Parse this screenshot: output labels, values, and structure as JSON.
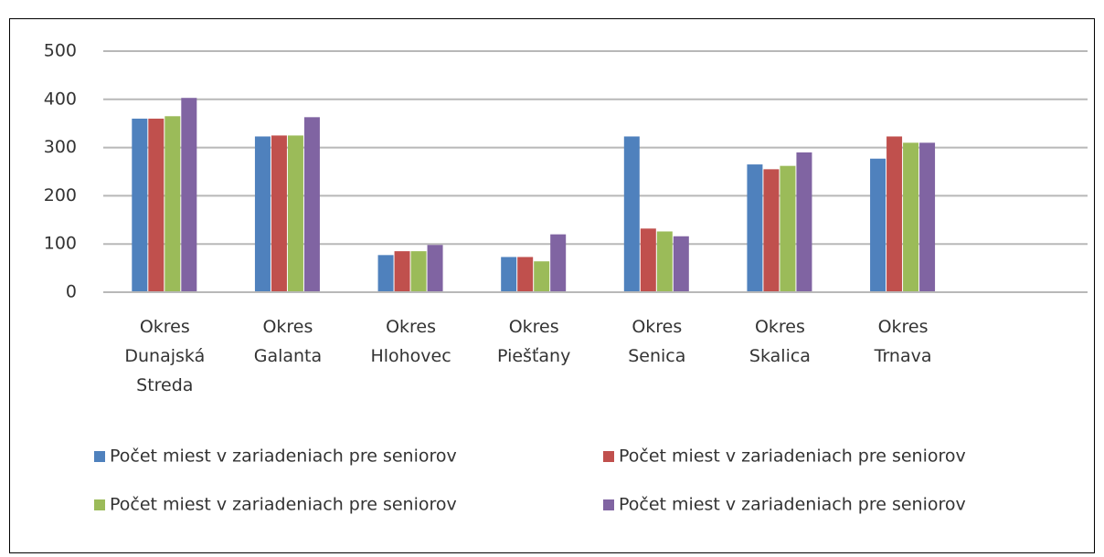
{
  "chart_data": {
    "type": "bar",
    "categories": [
      "Okres Dunajská Streda",
      "Okres Galanta",
      "Okres Hlohovec",
      "Okres Piešťany",
      "Okres Senica",
      "Okres Skalica",
      "Okres Trnava",
      null
    ],
    "series": [
      {
        "name": "Počet miest v zariadeniach pre seniorov",
        "color": "#4f81bd",
        "values": [
          360,
          323,
          77,
          73,
          323,
          265,
          277,
          null
        ]
      },
      {
        "name": "Počet miest v zariadeniach pre seniorov",
        "color": "#c0504d",
        "values": [
          360,
          325,
          85,
          73,
          132,
          255,
          323,
          null
        ]
      },
      {
        "name": "Počet miest v zariadeniach pre seniorov",
        "color": "#9bbb59",
        "values": [
          365,
          325,
          85,
          64,
          126,
          262,
          310,
          null
        ]
      },
      {
        "name": "Počet miest v zariadeniach pre seniorov",
        "color": "#8064a2",
        "values": [
          403,
          363,
          98,
          120,
          116,
          290,
          310,
          null
        ]
      }
    ],
    "ylim": [
      0,
      500
    ],
    "yticks": [
      0,
      100,
      200,
      300,
      400,
      500
    ],
    "grid": true,
    "legend": "bottom"
  }
}
